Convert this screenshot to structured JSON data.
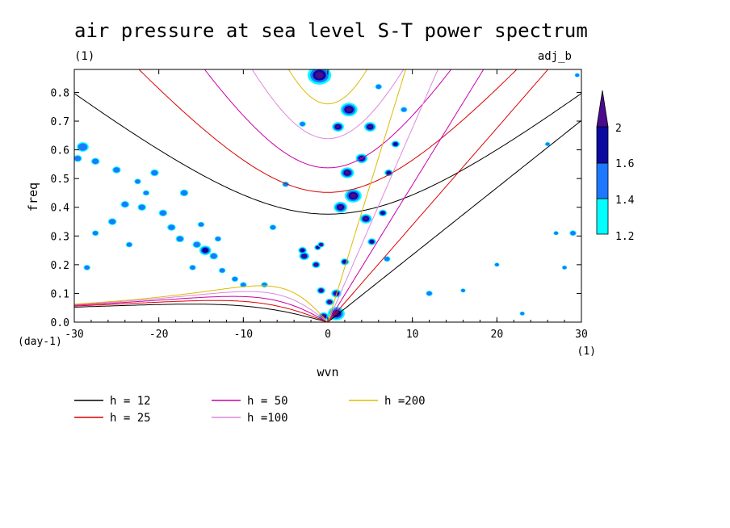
{
  "chart_data": {
    "type": "heatmap",
    "title": "air pressure at sea level S-T power spectrum",
    "subtitle_left": "(1)",
    "subtitle_right": "adj_b",
    "xlabel": "wvn",
    "ylabel": "freq",
    "x_unit": "(1)",
    "y_unit": "(day-1)",
    "xlim": [
      -30,
      30
    ],
    "ylim": [
      0,
      0.88
    ],
    "xticks": [
      -30,
      -20,
      -10,
      0,
      10,
      20,
      30
    ],
    "xtick_labels": [
      "-30",
      "-20",
      "-10",
      "0",
      "10",
      "20",
      "30"
    ],
    "yticks": [
      0,
      0.1,
      0.2,
      0.3,
      0.4,
      0.5,
      0.6,
      0.7,
      0.8
    ],
    "ytick_labels": [
      "0.0",
      "0.1",
      "0.2",
      "0.3",
      "0.4",
      "0.5",
      "0.6",
      "0.7",
      "0.8"
    ],
    "colorbar": {
      "levels": [
        1.2,
        1.4,
        1.6,
        2
      ],
      "labels": [
        "1.2",
        "1.4",
        "1.6",
        "2"
      ],
      "colors": [
        "#00ffff",
        "#1e78ff",
        "#0a0aa0",
        "#4b0b8c"
      ]
    },
    "series": [
      {
        "name": "h = 12",
        "h": 12,
        "color": "#000000"
      },
      {
        "name": "h = 25",
        "h": 25,
        "color": "#dd0000"
      },
      {
        "name": "h = 50",
        "h": 50,
        "color": "#cc00aa"
      },
      {
        "name": "h =100",
        "h": 100,
        "color": "#dd88dd"
      },
      {
        "name": "h =200",
        "h": 200,
        "color": "#ddbb00"
      }
    ],
    "blobs": [
      {
        "x": -1,
        "y": 0.86,
        "r": 1.4,
        "level": 3
      },
      {
        "x": 2.5,
        "y": 0.74,
        "r": 1.0,
        "level": 3
      },
      {
        "x": 1.2,
        "y": 0.68,
        "r": 0.7,
        "level": 3
      },
      {
        "x": 5.0,
        "y": 0.68,
        "r": 0.7,
        "level": 3
      },
      {
        "x": 4.0,
        "y": 0.57,
        "r": 0.7,
        "level": 3
      },
      {
        "x": 2.3,
        "y": 0.52,
        "r": 0.8,
        "level": 3
      },
      {
        "x": 8.0,
        "y": 0.62,
        "r": 0.5,
        "level": 2
      },
      {
        "x": 7.2,
        "y": 0.52,
        "r": 0.5,
        "level": 2
      },
      {
        "x": 3.0,
        "y": 0.44,
        "r": 1.0,
        "level": 3
      },
      {
        "x": 1.5,
        "y": 0.4,
        "r": 0.8,
        "level": 3
      },
      {
        "x": 4.5,
        "y": 0.36,
        "r": 0.7,
        "level": 3
      },
      {
        "x": 6.5,
        "y": 0.38,
        "r": 0.5,
        "level": 2
      },
      {
        "x": 5.2,
        "y": 0.28,
        "r": 0.5,
        "level": 2
      },
      {
        "x": -2.8,
        "y": 0.23,
        "r": 0.6,
        "level": 3
      },
      {
        "x": -1.4,
        "y": 0.2,
        "r": 0.5,
        "level": 3
      },
      {
        "x": -3.0,
        "y": 0.25,
        "r": 0.5,
        "level": 2
      },
      {
        "x": -1.2,
        "y": 0.26,
        "r": 0.4,
        "level": 2
      },
      {
        "x": -0.8,
        "y": 0.27,
        "r": 0.4,
        "level": 3
      },
      {
        "x": -0.8,
        "y": 0.11,
        "r": 0.5,
        "level": 3
      },
      {
        "x": 1.0,
        "y": 0.1,
        "r": 0.6,
        "level": 3
      },
      {
        "x": 0.2,
        "y": 0.07,
        "r": 0.5,
        "level": 3
      },
      {
        "x": 1.0,
        "y": 0.03,
        "r": 1.0,
        "level": 3
      },
      {
        "x": -0.5,
        "y": 0.02,
        "r": 0.6,
        "level": 3
      },
      {
        "x": 2.0,
        "y": 0.21,
        "r": 0.5,
        "level": 2
      },
      {
        "x": -14.5,
        "y": 0.25,
        "r": 0.7,
        "level": 2
      },
      {
        "x": -15.5,
        "y": 0.27,
        "r": 0.5,
        "level": 1
      },
      {
        "x": -17.5,
        "y": 0.29,
        "r": 0.5,
        "level": 1
      },
      {
        "x": -13.5,
        "y": 0.23,
        "r": 0.5,
        "level": 1
      },
      {
        "x": -16.0,
        "y": 0.19,
        "r": 0.4,
        "level": 1
      },
      {
        "x": -10.0,
        "y": 0.13,
        "r": 0.4,
        "level": 1
      },
      {
        "x": -29.0,
        "y": 0.61,
        "r": 0.7,
        "level": 1
      },
      {
        "x": -29.6,
        "y": 0.57,
        "r": 0.5,
        "level": 1
      },
      {
        "x": -27.5,
        "y": 0.56,
        "r": 0.5,
        "level": 1
      },
      {
        "x": -25.0,
        "y": 0.53,
        "r": 0.5,
        "level": 1
      },
      {
        "x": -20.5,
        "y": 0.52,
        "r": 0.5,
        "level": 1
      },
      {
        "x": -24.0,
        "y": 0.41,
        "r": 0.5,
        "level": 1
      },
      {
        "x": -22.0,
        "y": 0.4,
        "r": 0.5,
        "level": 1
      },
      {
        "x": -19.5,
        "y": 0.38,
        "r": 0.5,
        "level": 1
      },
      {
        "x": -17.0,
        "y": 0.45,
        "r": 0.5,
        "level": 1
      },
      {
        "x": -18.5,
        "y": 0.33,
        "r": 0.5,
        "level": 1
      },
      {
        "x": -25.5,
        "y": 0.35,
        "r": 0.5,
        "level": 1
      },
      {
        "x": -27.5,
        "y": 0.31,
        "r": 0.4,
        "level": 1
      },
      {
        "x": -23.5,
        "y": 0.27,
        "r": 0.4,
        "level": 1
      },
      {
        "x": -15.0,
        "y": 0.34,
        "r": 0.4,
        "level": 1
      },
      {
        "x": -12.5,
        "y": 0.18,
        "r": 0.4,
        "level": 1
      },
      {
        "x": -11.0,
        "y": 0.15,
        "r": 0.4,
        "level": 1
      },
      {
        "x": -7.5,
        "y": 0.13,
        "r": 0.4,
        "level": 1
      },
      {
        "x": -22.5,
        "y": 0.49,
        "r": 0.4,
        "level": 1
      },
      {
        "x": -28.5,
        "y": 0.19,
        "r": 0.4,
        "level": 1
      },
      {
        "x": -21.5,
        "y": 0.45,
        "r": 0.4,
        "level": 1
      },
      {
        "x": -13.0,
        "y": 0.29,
        "r": 0.4,
        "level": 1
      },
      {
        "x": -3.0,
        "y": 0.69,
        "r": 0.4,
        "level": 1
      },
      {
        "x": -5.0,
        "y": 0.48,
        "r": 0.4,
        "level": 1
      },
      {
        "x": -6.5,
        "y": 0.33,
        "r": 0.4,
        "level": 1
      },
      {
        "x": 6.0,
        "y": 0.82,
        "r": 0.4,
        "level": 1
      },
      {
        "x": 9.0,
        "y": 0.74,
        "r": 0.4,
        "level": 1
      },
      {
        "x": 7.0,
        "y": 0.22,
        "r": 0.4,
        "level": 1
      },
      {
        "x": 12.0,
        "y": 0.1,
        "r": 0.4,
        "level": 1
      },
      {
        "x": 23.0,
        "y": 0.03,
        "r": 0.3,
        "level": 1
      },
      {
        "x": 27.0,
        "y": 0.31,
        "r": 0.3,
        "level": 1
      },
      {
        "x": 29.0,
        "y": 0.31,
        "r": 0.4,
        "level": 1
      },
      {
        "x": 28.0,
        "y": 0.19,
        "r": 0.3,
        "level": 1
      },
      {
        "x": 26.0,
        "y": 0.62,
        "r": 0.3,
        "level": 1
      },
      {
        "x": 29.5,
        "y": 0.86,
        "r": 0.3,
        "level": 1
      },
      {
        "x": 20.0,
        "y": 0.2,
        "r": 0.3,
        "level": 1
      },
      {
        "x": 16.0,
        "y": 0.11,
        "r": 0.3,
        "level": 1
      }
    ]
  }
}
